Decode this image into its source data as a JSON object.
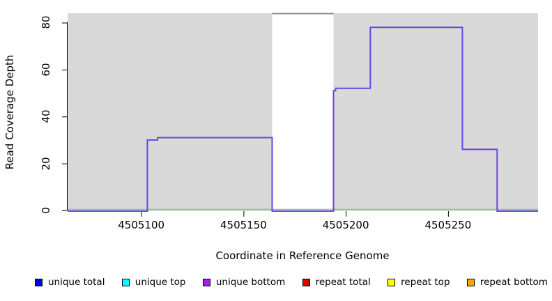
{
  "chart_data": {
    "type": "line",
    "subtype": "step-coverage",
    "title": "",
    "xlabel": "Coordinate in Reference Genome",
    "ylabel": "Read Coverage Depth",
    "xlim": [
      4505064,
      4505294
    ],
    "ylim": [
      0,
      84
    ],
    "x_ticks": [
      4505100,
      4505150,
      4505200,
      4505250
    ],
    "y_ticks": [
      0,
      20,
      40,
      60,
      80
    ],
    "grid": false,
    "plot_background_color": "#D9D9D9",
    "gap_region": {
      "from": 4505164,
      "to": 4505194,
      "fill": "#FFFFFF",
      "top_border_color": "#8C8C8C"
    },
    "series": [
      {
        "name": "baseline",
        "color": "#7DC77D",
        "style": "flat",
        "depth": 0,
        "from": 4505064,
        "to": 4505294
      },
      {
        "name": "unique bottom coverage",
        "color": "#6B43E6",
        "style": "step",
        "segments": [
          {
            "from": 4505064,
            "to": 4505103,
            "depth": 0
          },
          {
            "from": 4505103,
            "to": 4505108,
            "depth": 30
          },
          {
            "from": 4505108,
            "to": 4505164,
            "depth": 31
          },
          {
            "from": 4505164,
            "to": 4505194,
            "depth": 0
          },
          {
            "from": 4505194,
            "to": 4505195,
            "depth": 51
          },
          {
            "from": 4505195,
            "to": 4505212,
            "depth": 52
          },
          {
            "from": 4505212,
            "to": 4505257,
            "depth": 78
          },
          {
            "from": 4505257,
            "to": 4505274,
            "depth": 26
          },
          {
            "from": 4505274,
            "to": 4505294,
            "depth": 0
          }
        ]
      }
    ],
    "legend_position": "bottom"
  },
  "legend": {
    "items": [
      {
        "label": "unique total",
        "color": "#0000EE"
      },
      {
        "label": "unique top",
        "color": "#00FFFF"
      },
      {
        "label": "unique bottom",
        "color": "#A020F0"
      },
      {
        "label": "repeat total",
        "color": "#E00000"
      },
      {
        "label": "repeat top",
        "color": "#FFFF00"
      },
      {
        "label": "repeat bottom",
        "color": "#FFA500"
      }
    ]
  }
}
